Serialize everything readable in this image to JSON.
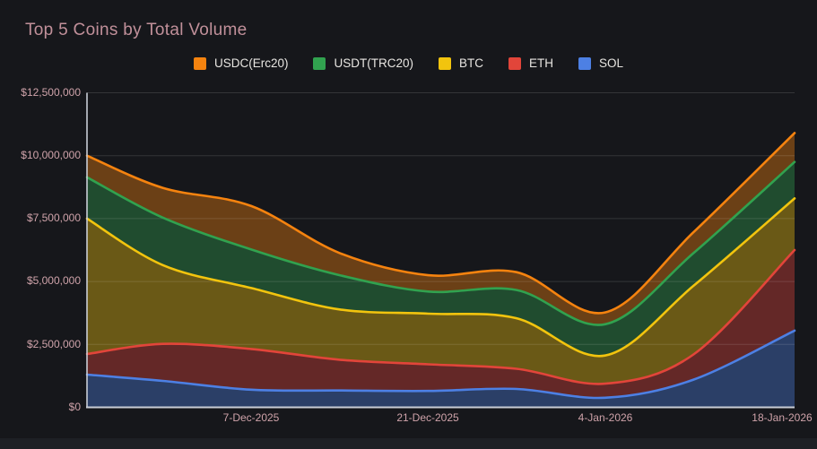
{
  "title": "Top 5 Coins by Total Volume",
  "colors": {
    "background": "#16171b",
    "bottom_strip": "#1e2025",
    "title_text": "#c1909a",
    "axis_label_text": "#cfa3aa",
    "legend_text": "#e8e6e2",
    "axis_line": "#c9cdd6",
    "gridline_overlay": "rgba(255,255,255,0.13)"
  },
  "legend": {
    "items": [
      {
        "label": "USDC(Erc20)",
        "color": "#f5830f"
      },
      {
        "label": "USDT(TRC20)",
        "color": "#31a24f"
      },
      {
        "label": "BTC",
        "color": "#f2c40e"
      },
      {
        "label": "ETH",
        "color": "#e2453a"
      },
      {
        "label": "SOL",
        "color": "#4d80e4"
      }
    ]
  },
  "chart_data": {
    "type": "area",
    "stacked": true,
    "title": "Top 5 Coins by Total Volume",
    "xlabel": "",
    "ylabel": "",
    "ylim": [
      0,
      12500000
    ],
    "x_domain_days": [
      0,
      56
    ],
    "x_days": [
      0,
      6,
      13,
      20,
      27,
      34,
      41,
      48,
      56
    ],
    "x_dates": [
      "24-Nov-2025",
      "30-Nov-2025",
      "7-Dec-2025",
      "14-Dec-2025",
      "21-Dec-2025",
      "28-Dec-2025",
      "4-Jan-2026",
      "11-Jan-2026",
      "19-Jan-2026"
    ],
    "x_ticks": [
      {
        "day": 13,
        "label": "7-Dec-2025"
      },
      {
        "day": 27,
        "label": "21-Dec-2025"
      },
      {
        "day": 41,
        "label": "4-Jan-2026"
      },
      {
        "day": 55,
        "label": "18-Jan-2026"
      }
    ],
    "y_ticks": [
      {
        "value": 12500000,
        "label": "$12,500,000"
      },
      {
        "value": 10000000,
        "label": "$10,000,000"
      },
      {
        "value": 7500000,
        "label": "$7,500,000"
      },
      {
        "value": 5000000,
        "label": "$5,000,000"
      },
      {
        "value": 2500000,
        "label": "$2,500,000"
      },
      {
        "value": 0,
        "label": "$0"
      }
    ],
    "series": [
      {
        "name": "SOL",
        "color": "#4d80e4",
        "values": [
          1300000,
          1050000,
          700000,
          670000,
          650000,
          730000,
          380000,
          1100000,
          3050000
        ]
      },
      {
        "name": "ETH",
        "color": "#e2453a",
        "values": [
          820000,
          1470000,
          1620000,
          1220000,
          1060000,
          800000,
          560000,
          1000000,
          3200000
        ]
      },
      {
        "name": "BTC",
        "color": "#f2c40e",
        "values": [
          5380000,
          3130000,
          2420000,
          2000000,
          2010000,
          2010000,
          1120000,
          2730000,
          2050000
        ]
      },
      {
        "name": "USDT(TRC20)",
        "color": "#31a24f",
        "values": [
          1640000,
          1890000,
          1530000,
          1360000,
          880000,
          1120000,
          1240000,
          1300000,
          1450000
        ]
      },
      {
        "name": "USDC(Erc20)",
        "color": "#f5830f",
        "values": [
          860000,
          1180000,
          1730000,
          880000,
          650000,
          710000,
          470000,
          830000,
          1150000
        ]
      }
    ],
    "fill_opacity": 0.38,
    "grid": "horizontal",
    "legend_position": "top-center"
  }
}
